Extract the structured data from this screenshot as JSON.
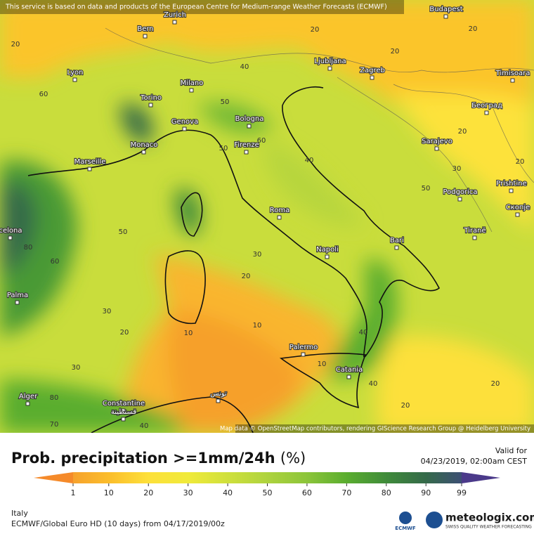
{
  "header": {
    "notice": "This service is based on data and products of the European Centre for Medium-range Weather Forecasts (ECMWF)",
    "attribution": "Map data © OpenStreetMap contributors, rendering GIScience Research Group @ Heidelberg University"
  },
  "map": {
    "cities": [
      "Bern",
      "Zurich",
      "Budapest",
      "Lyon",
      "Milano",
      "Ljubljana",
      "Zagreb",
      "Timisoara",
      "Torino",
      "Genova",
      "Bologna",
      "Београд",
      "Monaco",
      "Firenze",
      "Sarajevo",
      "Marseille",
      "Podgorica",
      "Prishtine",
      "Roma",
      "Скопје",
      "celona",
      "Tiranë",
      "Bari",
      "Napoli",
      "Palma",
      "Palermo",
      "Catania",
      "Alger",
      "Constantine",
      "قسنطينة",
      "تونس"
    ],
    "contour_labels": [
      20,
      20,
      20,
      20,
      40,
      60,
      50,
      60,
      50,
      40,
      30,
      50,
      20,
      50,
      80,
      60,
      30,
      20,
      30,
      20,
      10,
      10,
      10,
      40,
      40,
      20,
      30,
      20,
      80,
      70,
      40,
      20
    ]
  },
  "legend": {
    "title": "Prob. precipitation >=1mm/24h",
    "unit": "(%)",
    "ticks": [
      1,
      10,
      20,
      30,
      40,
      50,
      60,
      70,
      80,
      90,
      99
    ],
    "colors": [
      "#f6a22d",
      "#fbbd2b",
      "#fde03a",
      "#f0ea3a",
      "#cfe03c",
      "#aed33e",
      "#8cc53a",
      "#5aad2f",
      "#3f8b3a",
      "#356a4a",
      "#3d4f74"
    ],
    "under_color": "#f58a2a",
    "over_color": "#4b3a8a"
  },
  "valid": {
    "label": "Valid for",
    "time": "04/23/2019, 02:00am CEST"
  },
  "footer": {
    "region": "Italy",
    "model": "ECMWF/Global Euro HD (10 days) from 04/17/2019/00z",
    "brand": "meteologix.com",
    "slogan": "SWISS QUALITY WEATHER FORECASTING",
    "ecmwf": "ECMWF"
  }
}
